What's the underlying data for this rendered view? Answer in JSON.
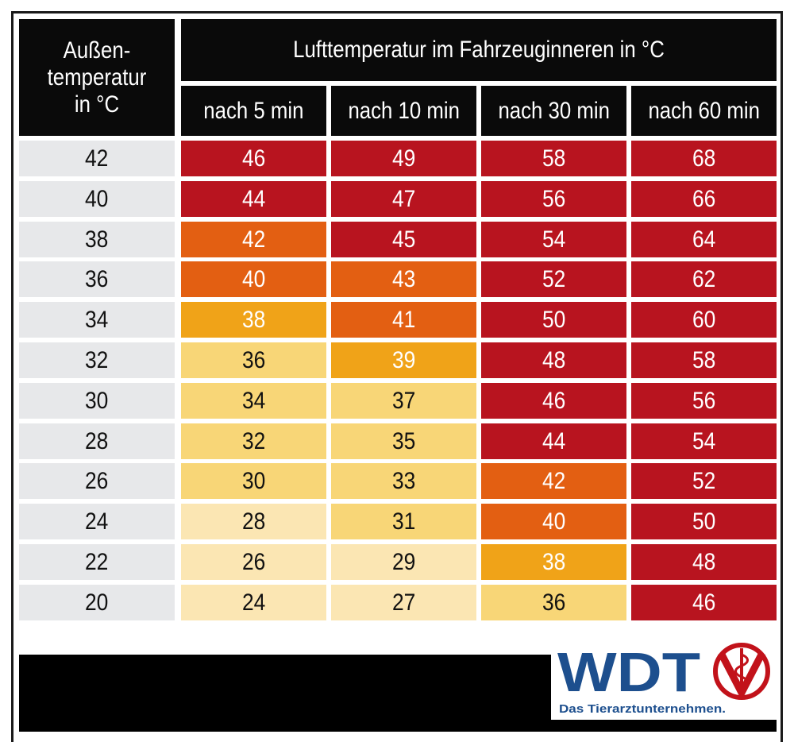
{
  "chart_data": {
    "type": "table",
    "row_header": "Außen-\ntemperatur\nin °C",
    "column_group_header": "Lufttemperatur im Fahrzeuginneren in °C",
    "columns": [
      "nach 5 min",
      "nach 10 min",
      "nach 30 min",
      "nach 60 min"
    ],
    "rows": [
      {
        "outside": "42",
        "values": [
          "46",
          "49",
          "58",
          "68"
        ],
        "levels": [
          4,
          4,
          4,
          4
        ]
      },
      {
        "outside": "40",
        "values": [
          "44",
          "47",
          "56",
          "66"
        ],
        "levels": [
          4,
          4,
          4,
          4
        ]
      },
      {
        "outside": "38",
        "values": [
          "42",
          "45",
          "54",
          "64"
        ],
        "levels": [
          3,
          4,
          4,
          4
        ]
      },
      {
        "outside": "36",
        "values": [
          "40",
          "43",
          "52",
          "62"
        ],
        "levels": [
          3,
          3,
          4,
          4
        ]
      },
      {
        "outside": "34",
        "values": [
          "38",
          "41",
          "50",
          "60"
        ],
        "levels": [
          2,
          3,
          4,
          4
        ]
      },
      {
        "outside": "32",
        "values": [
          "36",
          "39",
          "48",
          "58"
        ],
        "levels": [
          1,
          2,
          4,
          4
        ]
      },
      {
        "outside": "30",
        "values": [
          "34",
          "37",
          "46",
          "56"
        ],
        "levels": [
          1,
          1,
          4,
          4
        ]
      },
      {
        "outside": "28",
        "values": [
          "32",
          "35",
          "44",
          "54"
        ],
        "levels": [
          1,
          1,
          4,
          4
        ]
      },
      {
        "outside": "26",
        "values": [
          "30",
          "33",
          "42",
          "52"
        ],
        "levels": [
          1,
          1,
          3,
          4
        ]
      },
      {
        "outside": "24",
        "values": [
          "28",
          "31",
          "40",
          "50"
        ],
        "levels": [
          0,
          1,
          3,
          4
        ]
      },
      {
        "outside": "22",
        "values": [
          "26",
          "29",
          "38",
          "48"
        ],
        "levels": [
          0,
          0,
          2,
          4
        ]
      },
      {
        "outside": "20",
        "values": [
          "24",
          "27",
          "36",
          "46"
        ],
        "levels": [
          0,
          0,
          1,
          4
        ]
      }
    ],
    "level_colors": [
      "#fbe6b3",
      "#f8d677",
      "#f0a318",
      "#e35f12",
      "#b8141f"
    ],
    "level_text_colors": [
      "#111111",
      "#111111",
      "#ffffff",
      "#ffffff",
      "#ffffff"
    ],
    "row_header_bg": "#e7e8ea"
  },
  "logo": {
    "text": "WDT",
    "tagline": "Das Tierarztunternehmen.",
    "brand_blue": "#1d4f8e",
    "brand_red": "#c2121a"
  }
}
